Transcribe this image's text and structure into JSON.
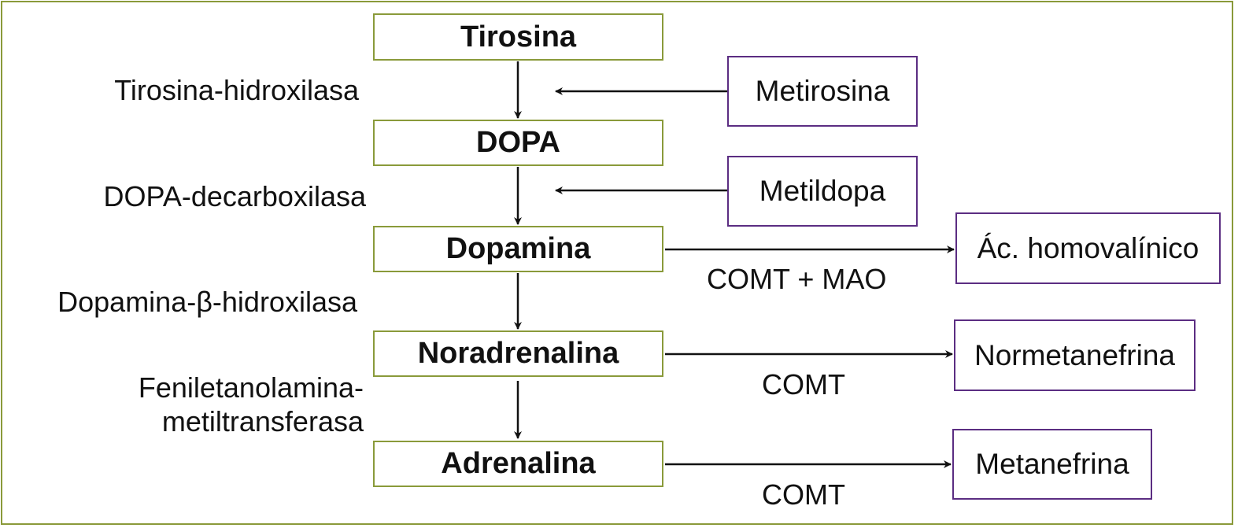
{
  "colors": {
    "metabolite_border": "#8a9a3a",
    "inhibitor_border": "#5b2d82",
    "arrow": "#111111"
  },
  "metabolites": [
    "Tirosina",
    "DOPA",
    "Dopamina",
    "Noradrenalina",
    "Adrenalina"
  ],
  "enzymes": {
    "tyrosine": "Tirosina-hidroxilasa",
    "dopa": "DOPA-decarboxilasa",
    "dopamine_beta": "Dopamina-β-hidroxilasa",
    "pnmt_line1": "Feniletanolamina-",
    "pnmt_line2": "metiltransferasa"
  },
  "inhibitors": [
    "Metirosina",
    "Metildopa"
  ],
  "products": [
    "Ác. homovalínico",
    "Normetanefrina",
    "Metanefrina"
  ],
  "product_enzymes": [
    "COMT + MAO",
    "COMT",
    "COMT"
  ]
}
